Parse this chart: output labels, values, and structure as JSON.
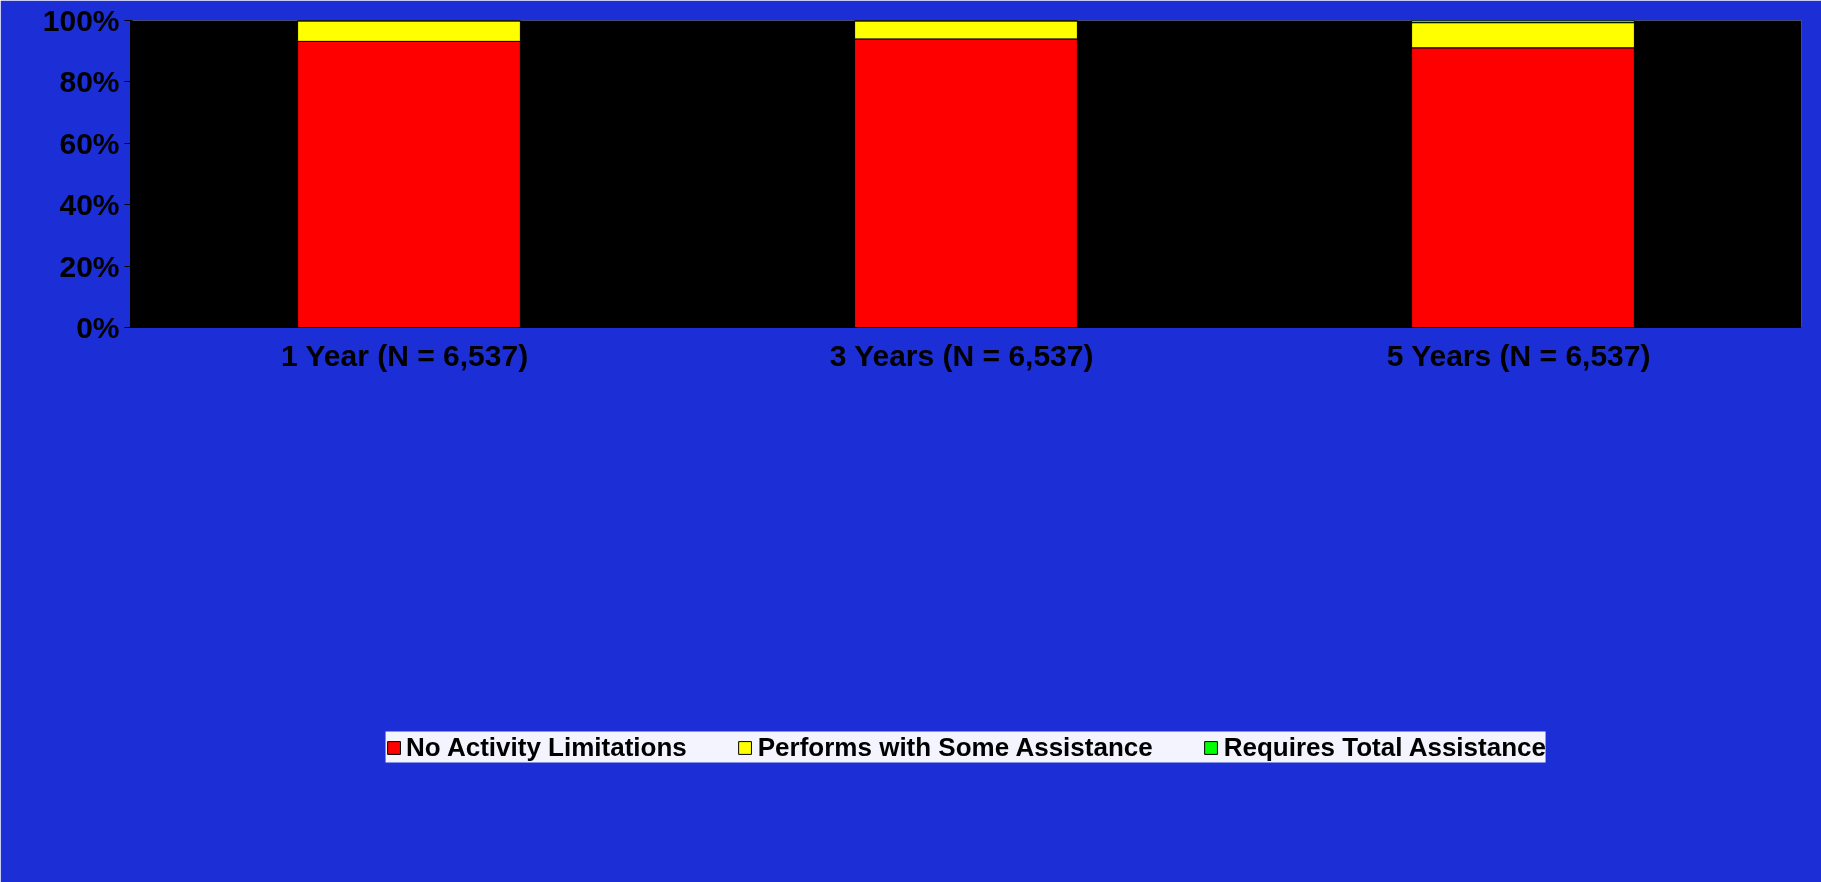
{
  "chart_data": {
    "type": "bar",
    "stacked": true,
    "categories": [
      "1 Year  (N = 6,537)",
      "3 Years  (N = 6,537)",
      "5 Years  (N = 6,537)"
    ],
    "series": [
      {
        "name": "No Activity Limitations",
        "color": "#ff0000",
        "values": [
          93.2,
          94.0,
          91.1
        ]
      },
      {
        "name": "Performs with Some Assistance",
        "color": "#ffff00",
        "values": [
          6.7,
          5.9,
          8.2
        ]
      },
      {
        "name": "Requires Total Assistance",
        "color": "#00ff00",
        "values": [
          null,
          null,
          0.7
        ]
      }
    ],
    "ylim": [
      0,
      100
    ],
    "yticks": [
      {
        "value": 0,
        "label": "0%"
      },
      {
        "value": 20,
        "label": "20%"
      },
      {
        "value": 40,
        "label": "40%"
      },
      {
        "value": 60,
        "label": "60%"
      },
      {
        "value": 80,
        "label": "80%"
      },
      {
        "value": 100,
        "label": "100%"
      }
    ],
    "grid": false,
    "legend": "bottom"
  }
}
